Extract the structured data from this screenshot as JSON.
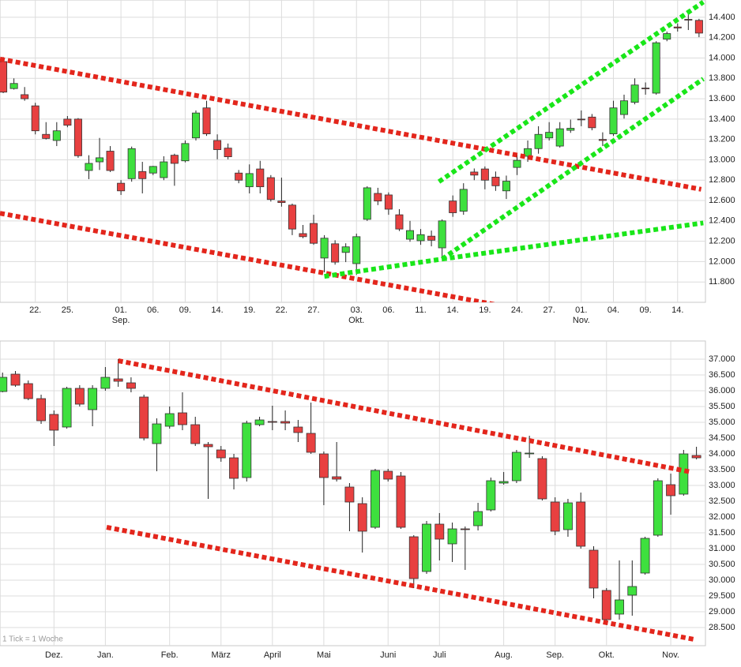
{
  "chart_data": [
    {
      "type": "candlestick",
      "open": [
        13965,
        13700,
        13640,
        13530,
        13250,
        13190,
        13400,
        13400,
        12895,
        12980,
        13085,
        12770,
        12815,
        12885,
        12870,
        12825,
        13045,
        12990,
        13215,
        13510,
        13190,
        13115,
        12870,
        12735,
        12910,
        12825,
        12595,
        12555,
        12275,
        12375,
        12035,
        12175,
        12090,
        11980,
        12415,
        12670,
        12655,
        12460,
        12220,
        12205,
        12250,
        12135,
        12595,
        12495,
        12880,
        12910,
        12830,
        12695,
        12925,
        13035,
        13110,
        13215,
        13135,
        13290,
        13400,
        13420,
        13200,
        13255,
        13445,
        13565,
        13705,
        13655,
        14185,
        14305,
        14380,
        14370
      ],
      "high": [
        14010,
        13800,
        13715,
        13560,
        13370,
        13370,
        13430,
        13410,
        13045,
        13215,
        13135,
        12800,
        13130,
        12980,
        12940,
        13035,
        13060,
        13190,
        13485,
        13580,
        13250,
        13160,
        12900,
        12955,
        12990,
        12850,
        12825,
        12570,
        12360,
        12460,
        12260,
        12210,
        12180,
        12275,
        12740,
        12725,
        12680,
        12515,
        12400,
        12320,
        12305,
        12415,
        12650,
        12770,
        12915,
        12935,
        12885,
        12845,
        13060,
        13190,
        13330,
        13370,
        13370,
        13395,
        13485,
        13450,
        13270,
        13580,
        13640,
        13800,
        13760,
        14165,
        14260,
        14340,
        14450,
        14385
      ],
      "low": [
        13655,
        13690,
        13580,
        13250,
        13200,
        13135,
        13320,
        13020,
        12810,
        12900,
        12880,
        12655,
        12785,
        12670,
        12850,
        12800,
        12745,
        12975,
        13190,
        13235,
        13005,
        13005,
        12770,
        12670,
        12670,
        12590,
        12540,
        12260,
        12230,
        12165,
        11895,
        11970,
        11995,
        11870,
        12400,
        12555,
        12460,
        12300,
        12195,
        12165,
        12150,
        12045,
        12440,
        12460,
        12800,
        12710,
        12695,
        12615,
        12850,
        12980,
        13060,
        13190,
        13120,
        13265,
        13330,
        13290,
        13135,
        13235,
        13405,
        13545,
        13640,
        13640,
        14165,
        14260,
        14275,
        14205
      ],
      "close": [
        13665,
        13750,
        13600,
        13285,
        13210,
        13285,
        13340,
        13040,
        12965,
        13020,
        12895,
        12695,
        13110,
        12815,
        12935,
        12980,
        12965,
        13160,
        13460,
        13255,
        13100,
        13030,
        12800,
        12865,
        12735,
        12610,
        12580,
        12320,
        12245,
        12180,
        12230,
        11995,
        12145,
        12245,
        12725,
        12595,
        12515,
        12320,
        12305,
        12265,
        12210,
        12400,
        12480,
        12710,
        12850,
        12800,
        12745,
        12790,
        12995,
        13110,
        13250,
        13270,
        13305,
        13310,
        13395,
        13315,
        13190,
        13510,
        13580,
        13735,
        13700,
        14150,
        14240,
        14295,
        14375,
        14245
      ],
      "up_color": "#3ee03e",
      "down_color": "#e84040",
      "xlim": [
        -0.3,
        65.6
      ],
      "ylim": [
        11600,
        14570
      ],
      "xticks": [
        {
          "value": 3,
          "label": "22."
        },
        {
          "value": 6,
          "label": "25."
        },
        {
          "value": 11,
          "label": "01."
        },
        {
          "value": 14,
          "label": "06."
        },
        {
          "value": 17,
          "label": "09."
        },
        {
          "value": 20,
          "label": "14."
        },
        {
          "value": 23,
          "label": "19."
        },
        {
          "value": 26,
          "label": "22."
        },
        {
          "value": 29,
          "label": "27."
        },
        {
          "value": 33,
          "label": "03."
        },
        {
          "value": 36,
          "label": "06."
        },
        {
          "value": 39,
          "label": "11."
        },
        {
          "value": 42,
          "label": "14."
        },
        {
          "value": 45,
          "label": "19."
        },
        {
          "value": 48,
          "label": "24."
        },
        {
          "value": 51,
          "label": "27."
        },
        {
          "value": 54,
          "label": "01."
        },
        {
          "value": 57,
          "label": "04."
        },
        {
          "value": 60,
          "label": "09."
        },
        {
          "value": 63,
          "label": "14."
        }
      ],
      "month_labels": [
        {
          "value": 11,
          "label": "Sep."
        },
        {
          "value": 33,
          "label": "Okt."
        },
        {
          "value": 54,
          "label": "Nov."
        }
      ],
      "yticks": [
        {
          "value": 14400,
          "label": "14.400"
        },
        {
          "value": 14200,
          "label": "14.200"
        },
        {
          "value": 14000,
          "label": "14.000"
        },
        {
          "value": 13800,
          "label": "13.800"
        },
        {
          "value": 13600,
          "label": "13.600"
        },
        {
          "value": 13400,
          "label": "13.400"
        },
        {
          "value": 13200,
          "label": "13.200"
        },
        {
          "value": 13000,
          "label": "13.000"
        },
        {
          "value": 12800,
          "label": "12.800"
        },
        {
          "value": 12600,
          "label": "12.600"
        },
        {
          "value": 12400,
          "label": "12.400"
        },
        {
          "value": 12200,
          "label": "12.200"
        },
        {
          "value": 12000,
          "label": "12.000"
        },
        {
          "value": 11800,
          "label": "11.800"
        }
      ],
      "grid": true,
      "trend_lines": [
        {
          "color": "#e3261c",
          "x": [
            -0.3,
            65.2
          ],
          "y": [
            13990,
            12710
          ]
        },
        {
          "color": "#e3261c",
          "x": [
            -0.3,
            46.9
          ],
          "y": [
            12475,
            11560
          ]
        },
        {
          "color": "#19e619",
          "x": [
            30,
            41
          ],
          "y": [
            11855,
            12025
          ]
        },
        {
          "color": "#19e619",
          "x": [
            41,
            65.4
          ],
          "y": [
            12025,
            12380
          ]
        },
        {
          "color": "#19e619",
          "x": [
            41,
            65.4
          ],
          "y": [
            12025,
            13795
          ]
        },
        {
          "color": "#19e619",
          "x": [
            40.7,
            65.4
          ],
          "y": [
            12785,
            14550
          ]
        }
      ]
    },
    {
      "type": "candlestick",
      "open": [
        35975,
        36525,
        36225,
        35750,
        35250,
        34850,
        36075,
        35400,
        36075,
        36375,
        36250,
        35800,
        34325,
        34875,
        35300,
        34925,
        34300,
        34125,
        33875,
        33250,
        34925,
        35025,
        35025,
        34850,
        34650,
        34000,
        33275,
        32950,
        32425,
        31675,
        33450,
        33300,
        31375,
        30275,
        31775,
        31150,
        31625,
        31725,
        32225,
        33075,
        33150,
        34000,
        33850,
        32475,
        31600,
        32475,
        30950,
        29675,
        28925,
        29525,
        30225,
        31425,
        33025,
        32725,
        33950
      ],
      "high": [
        36575,
        36625,
        36325,
        35875,
        35375,
        36125,
        36175,
        36175,
        36750,
        37000,
        36425,
        35875,
        35125,
        35500,
        35950,
        35175,
        34375,
        34250,
        34000,
        35050,
        35175,
        35525,
        35375,
        35075,
        35625,
        34075,
        34375,
        33075,
        32625,
        33525,
        33525,
        33425,
        31425,
        31875,
        32125,
        31825,
        31700,
        32450,
        33250,
        33425,
        34125,
        34575,
        33925,
        32625,
        32575,
        32775,
        31075,
        29750,
        30625,
        30625,
        31375,
        33225,
        33375,
        34125,
        34225
      ],
      "low": [
        35950,
        36125,
        35700,
        34950,
        34250,
        34800,
        35500,
        34875,
        36000,
        36125,
        35950,
        34425,
        33450,
        34800,
        34750,
        34250,
        32575,
        33750,
        32875,
        33125,
        34875,
        34750,
        34750,
        34375,
        34000,
        32375,
        33125,
        31550,
        30875,
        31625,
        33125,
        31625,
        29750,
        30200,
        30625,
        30575,
        30325,
        31575,
        32175,
        33025,
        33075,
        33875,
        32525,
        31425,
        31375,
        31000,
        29425,
        28625,
        28750,
        28875,
        30175,
        31375,
        32075,
        32675,
        33825
      ],
      "close": [
        36425,
        36175,
        35750,
        35050,
        34750,
        36075,
        35575,
        36075,
        36425,
        36300,
        36075,
        34500,
        34950,
        35275,
        34925,
        34325,
        34225,
        33875,
        33225,
        34975,
        35075,
        35000,
        34975,
        34675,
        34050,
        33250,
        33200,
        32475,
        31550,
        33475,
        33200,
        31675,
        30050,
        31775,
        31300,
        31625,
        31600,
        32175,
        33150,
        33125,
        34050,
        34025,
        32575,
        31550,
        32450,
        31075,
        29750,
        28750,
        29375,
        29800,
        31325,
        33150,
        32675,
        34000,
        33875
      ],
      "up_color": "#3ee03e",
      "down_color": "#e84040",
      "xlim": [
        -0.2,
        54.7
      ],
      "ylim": [
        27925,
        37575
      ],
      "xticks": [
        {
          "value": 4,
          "label": "Dez."
        },
        {
          "value": 8,
          "label": "Jan."
        },
        {
          "value": 13,
          "label": "Feb."
        },
        {
          "value": 17,
          "label": "März"
        },
        {
          "value": 21,
          "label": "April"
        },
        {
          "value": 25,
          "label": "Mai"
        },
        {
          "value": 30,
          "label": "Juni"
        },
        {
          "value": 34,
          "label": "Juli"
        },
        {
          "value": 39,
          "label": "Aug."
        },
        {
          "value": 43,
          "label": "Sep."
        },
        {
          "value": 47,
          "label": "Okt."
        },
        {
          "value": 52,
          "label": "Nov."
        }
      ],
      "yticks": [
        {
          "value": 37000,
          "label": "37.000"
        },
        {
          "value": 36500,
          "label": "36.500"
        },
        {
          "value": 36000,
          "label": "36.000"
        },
        {
          "value": 35500,
          "label": "35.500"
        },
        {
          "value": 35000,
          "label": "35.000"
        },
        {
          "value": 34500,
          "label": "34.500"
        },
        {
          "value": 34000,
          "label": "34.000"
        },
        {
          "value": 33500,
          "label": "33.500"
        },
        {
          "value": 33000,
          "label": "33.000"
        },
        {
          "value": 32500,
          "label": "32.500"
        },
        {
          "value": 32000,
          "label": "32.000"
        },
        {
          "value": 31500,
          "label": "31.500"
        },
        {
          "value": 31000,
          "label": "31.000"
        },
        {
          "value": 30500,
          "label": "30.500"
        },
        {
          "value": 30000,
          "label": "30.000"
        },
        {
          "value": 29500,
          "label": "29.500"
        },
        {
          "value": 29000,
          "label": "29.000"
        },
        {
          "value": 28500,
          "label": "28.500"
        }
      ],
      "grid": true,
      "note": "1 Tick = 1 Woche",
      "trend_lines": [
        {
          "color": "#e3261c",
          "x": [
            9,
            53.6
          ],
          "y": [
            36950,
            33425
          ]
        },
        {
          "color": "#e3261c",
          "x": [
            8.1,
            53.8
          ],
          "y": [
            31675,
            28125
          ]
        }
      ]
    }
  ]
}
